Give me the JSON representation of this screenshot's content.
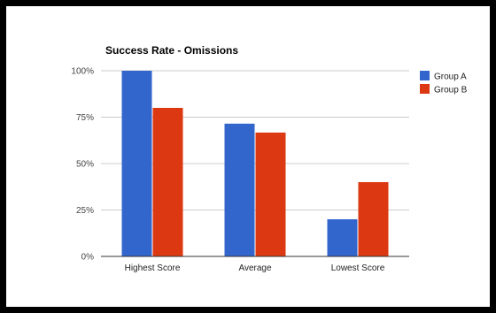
{
  "chart_data": {
    "type": "bar",
    "title": "Success Rate - Omissions",
    "categories": [
      "Highest Score",
      "Average",
      "Lowest Score"
    ],
    "series": [
      {
        "name": "Group A",
        "values": [
          100,
          71.5,
          20
        ],
        "color": "#3366cc"
      },
      {
        "name": "Group B",
        "values": [
          80,
          66.7,
          40
        ],
        "color": "#dc3912"
      }
    ],
    "ylim": [
      0,
      100
    ],
    "yticks": [
      0,
      25,
      50,
      75,
      100
    ],
    "ytick_labels": [
      "0%",
      "25%",
      "50%",
      "75%",
      "100%"
    ],
    "grid": true,
    "legend_position": "right"
  }
}
